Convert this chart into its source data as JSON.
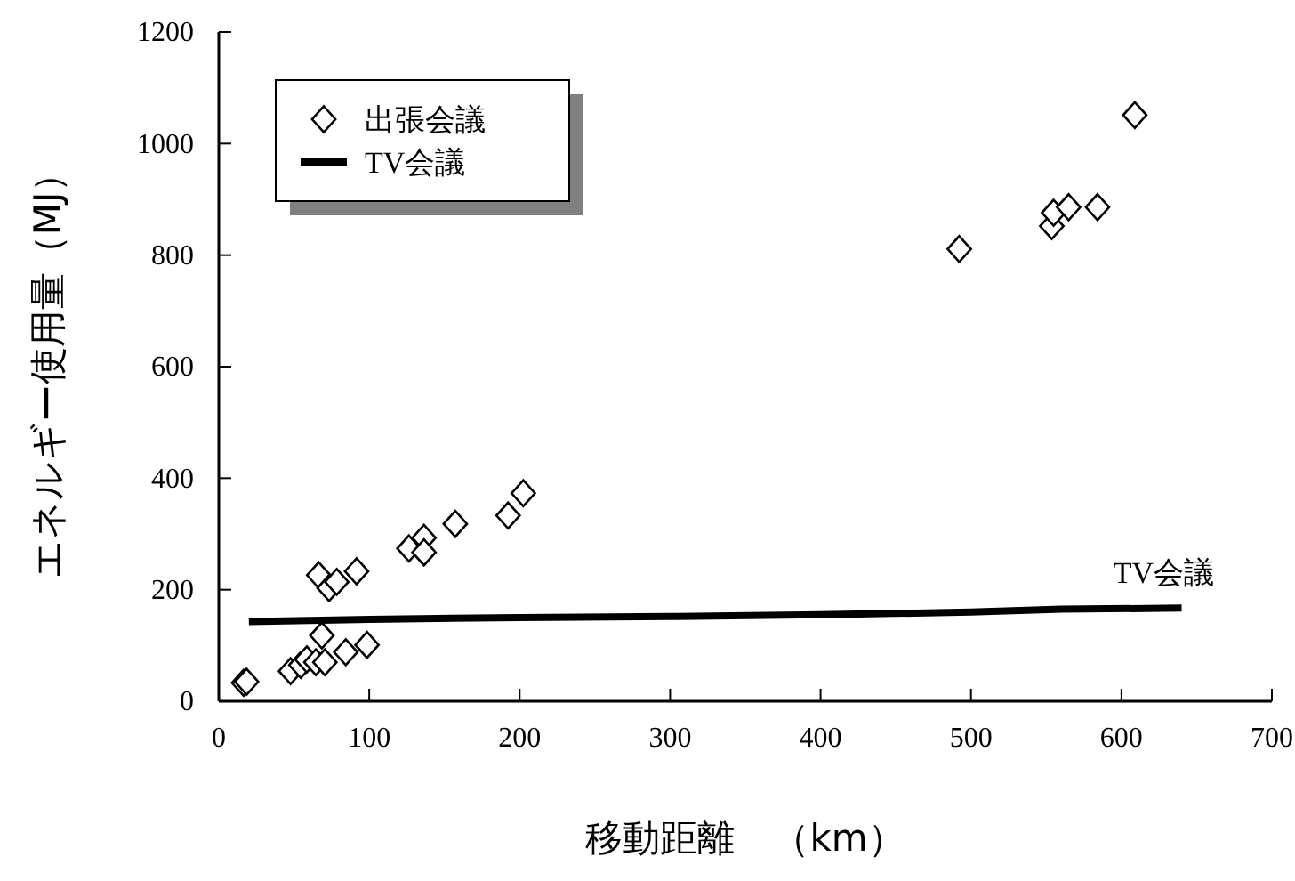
{
  "chart_data": {
    "type": "scatter",
    "xlabel": "移動距離　（km）",
    "ylabel": "エネルギー使用量（MJ）",
    "xlim": [
      0,
      700
    ],
    "xticks": [
      0,
      100,
      200,
      300,
      400,
      500,
      600,
      700
    ],
    "ylim": [
      0,
      1200
    ],
    "yticks": [
      0,
      200,
      400,
      600,
      800,
      1000,
      1200
    ],
    "grid": false,
    "legend": "top left",
    "series": [
      {
        "name": "出張会議",
        "type": "scatter",
        "marker": "diamond",
        "color": "#000000",
        "x": [
          16.5,
          18.5,
          47.7,
          54.5,
          58.5,
          64.5,
          68.5,
          70.5,
          84.4,
          98.5,
          66.4,
          73.3,
          78.4,
          91.6,
          126.4,
          136.4,
          136.4,
          157.2,
          192.3,
          202.4,
          492.2,
          553.7,
          554.9,
          564.9,
          584.1,
          608.9
        ],
        "values": [
          33,
          35,
          54,
          65,
          75,
          70,
          118,
          70,
          88,
          101,
          226,
          203,
          214,
          233,
          274,
          293,
          267,
          318,
          333,
          373,
          811,
          852,
          876,
          886,
          886,
          1051
        ]
      },
      {
        "name": "TV会議",
        "type": "line",
        "marker": "none",
        "line_style": "solid",
        "color": "#000000",
        "x": [
          20,
          100,
          200,
          300,
          400,
          500,
          560,
          640
        ],
        "values": [
          143,
          147,
          150,
          152,
          155,
          160,
          165,
          167
        ]
      }
    ]
  }
}
